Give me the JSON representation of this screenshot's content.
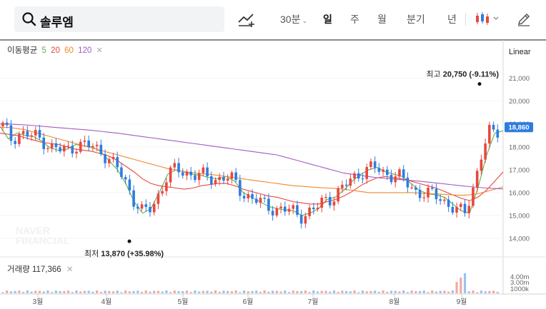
{
  "search": {
    "query": "솔루엠"
  },
  "toolbar": {
    "periods": [
      "30분",
      "일",
      "주",
      "월",
      "분기",
      "년"
    ],
    "active_period": "일"
  },
  "ma_legend": {
    "title": "이동평균",
    "items": [
      {
        "label": "5",
        "color": "#56b64a"
      },
      {
        "label": "20",
        "color": "#e8473f"
      },
      {
        "label": "60",
        "color": "#f08a2c"
      },
      {
        "label": "120",
        "color": "#a35bc4"
      }
    ],
    "close_icon": "x"
  },
  "scale_mode": "Linear",
  "volume_legend": {
    "label": "거래량",
    "value": "117,366"
  },
  "watermark": [
    "NAVER",
    "FINANCIAL"
  ],
  "colors": {
    "up": "#e8473f",
    "down": "#2f7ce0",
    "current_tag": "#2f7ce0"
  },
  "chart_data": {
    "type": "candlestick",
    "x_ticks": [
      "3월",
      "4월",
      "5월",
      "6월",
      "7월",
      "8월",
      "9월"
    ],
    "y_ticks": [
      "14,000",
      "15,000",
      "16,000",
      "17,000",
      "18,000",
      "19,000",
      "20,000",
      "21,000"
    ],
    "y_range": [
      13500,
      21800
    ],
    "current_price": "18,860",
    "annotations": {
      "high": {
        "label": "최고",
        "value": "20,750",
        "change": "(-9.11%)"
      },
      "low": {
        "label": "최저",
        "value": "13,870",
        "change": "(+35.98%)"
      }
    },
    "volume_ticks": [
      "4.00m",
      "3.00m",
      "1000k"
    ],
    "ma_series": [
      {
        "name": "5",
        "color": "#56b64a",
        "values": [
          18900,
          18350,
          18600,
          18500,
          18450,
          18250,
          17950,
          17850,
          17900,
          18100,
          18050,
          18000,
          17800,
          17400,
          17000,
          16400,
          15600,
          15100,
          15300,
          16000,
          16800,
          17000,
          16900,
          16800,
          16750,
          16650,
          16600,
          16700,
          16500,
          16000,
          15800,
          15600,
          15400,
          15300,
          15250,
          15200,
          15000,
          15100,
          15300,
          15700,
          15800,
          16100,
          16500,
          16800,
          17000,
          17100,
          16900,
          16800,
          16700,
          16400,
          16100,
          15950,
          15900,
          15800,
          15500,
          15200,
          15100,
          16200,
          17600,
          18600,
          18700
        ]
      },
      {
        "name": "20",
        "color": "#e8473f",
        "values": [
          18600,
          18550,
          18500,
          18400,
          18300,
          18200,
          18150,
          18100,
          18000,
          17900,
          17850,
          17800,
          17700,
          17600,
          17400,
          17150,
          16900,
          16600,
          16400,
          16300,
          16250,
          16200,
          16150,
          16200,
          16300,
          16350,
          16400,
          16400,
          16300,
          16150,
          16050,
          15950,
          15850,
          15800,
          15700,
          15600,
          15550,
          15500,
          15500,
          15600,
          15700,
          15850,
          16050,
          16300,
          16500,
          16650,
          16700,
          16650,
          16600,
          16500,
          16400,
          16300,
          16200,
          16050,
          15900,
          15750,
          15650,
          15800,
          16100,
          16500,
          16900
        ]
      },
      {
        "name": "60",
        "color": "#f08a2c",
        "values": [
          18850,
          18850,
          18800,
          18750,
          18650,
          18550,
          18450,
          18350,
          18250,
          18150,
          18050,
          17950,
          17850,
          17750,
          17650,
          17550,
          17450,
          17350,
          17250,
          17150,
          17050,
          16980,
          16920,
          16870,
          16830,
          16800,
          16750,
          16700,
          16650,
          16600,
          16550,
          16500,
          16450,
          16400,
          16350,
          16300,
          16280,
          16250,
          16220,
          16200,
          16180,
          16150,
          16100,
          16050,
          16000,
          16000,
          16000,
          16000,
          16000,
          16000,
          15980,
          15960,
          15940,
          15920,
          15900,
          15880,
          15900,
          15950,
          16050,
          16150,
          16250
        ]
      },
      {
        "name": "120",
        "color": "#a35bc4",
        "values": [
          19000,
          19000,
          18980,
          18960,
          18930,
          18900,
          18870,
          18840,
          18810,
          18780,
          18750,
          18720,
          18680,
          18640,
          18600,
          18550,
          18500,
          18450,
          18400,
          18350,
          18300,
          18250,
          18200,
          18150,
          18100,
          18050,
          18000,
          17950,
          17900,
          17850,
          17800,
          17750,
          17700,
          17650,
          17550,
          17450,
          17350,
          17250,
          17150,
          17050,
          16950,
          16850,
          16800,
          16750,
          16700,
          16650,
          16620,
          16590,
          16560,
          16530,
          16500,
          16460,
          16420,
          16380,
          16340,
          16300,
          16260,
          16230,
          16200,
          16180,
          16160
        ]
      }
    ]
  }
}
